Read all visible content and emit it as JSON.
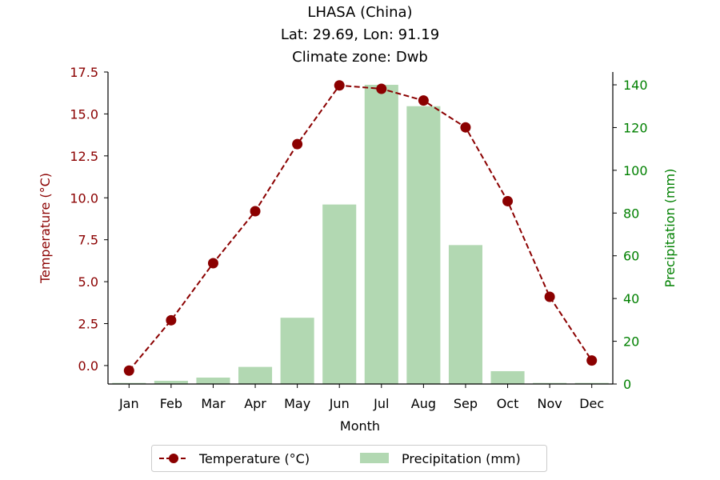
{
  "chart_data": {
    "type": "bar+line",
    "title_lines": [
      "LHASA (China)",
      "Lat: 29.69, Lon: 91.19",
      "Climate zone: Dwb"
    ],
    "xlabel": "Month",
    "ylabel_left": "Temperature (°C)",
    "ylabel_right": "Precipitation (mm)",
    "categories": [
      "Jan",
      "Feb",
      "Mar",
      "Apr",
      "May",
      "Jun",
      "Jul",
      "Aug",
      "Sep",
      "Oct",
      "Nov",
      "Dec"
    ],
    "ylim_left": [
      -1.1,
      17.5
    ],
    "yticks_left": [
      "0.0",
      "2.5",
      "5.0",
      "7.5",
      "10.0",
      "12.5",
      "15.0",
      "17.5"
    ],
    "ylim_right": [
      0,
      146
    ],
    "yticks_right": [
      "0",
      "20",
      "40",
      "60",
      "80",
      "100",
      "120",
      "140"
    ],
    "series": [
      {
        "name": "Temperature (°C)",
        "kind": "line",
        "axis": "left",
        "color": "#8b0000",
        "style": "dashed",
        "marker": "circle",
        "values": [
          -0.3,
          2.7,
          6.1,
          9.2,
          13.2,
          16.7,
          16.5,
          15.8,
          14.2,
          9.8,
          4.1,
          0.3
        ]
      },
      {
        "name": "Precipitation (mm)",
        "kind": "bar",
        "axis": "right",
        "color": "#b2d8b2",
        "values": [
          0.5,
          1.5,
          3,
          8,
          31,
          84,
          140,
          130,
          65,
          6,
          0.5,
          0.5
        ]
      }
    ],
    "legend_position": "bottom-center",
    "colors": {
      "left_axis": "#8b0000",
      "right_axis": "#008000"
    }
  }
}
